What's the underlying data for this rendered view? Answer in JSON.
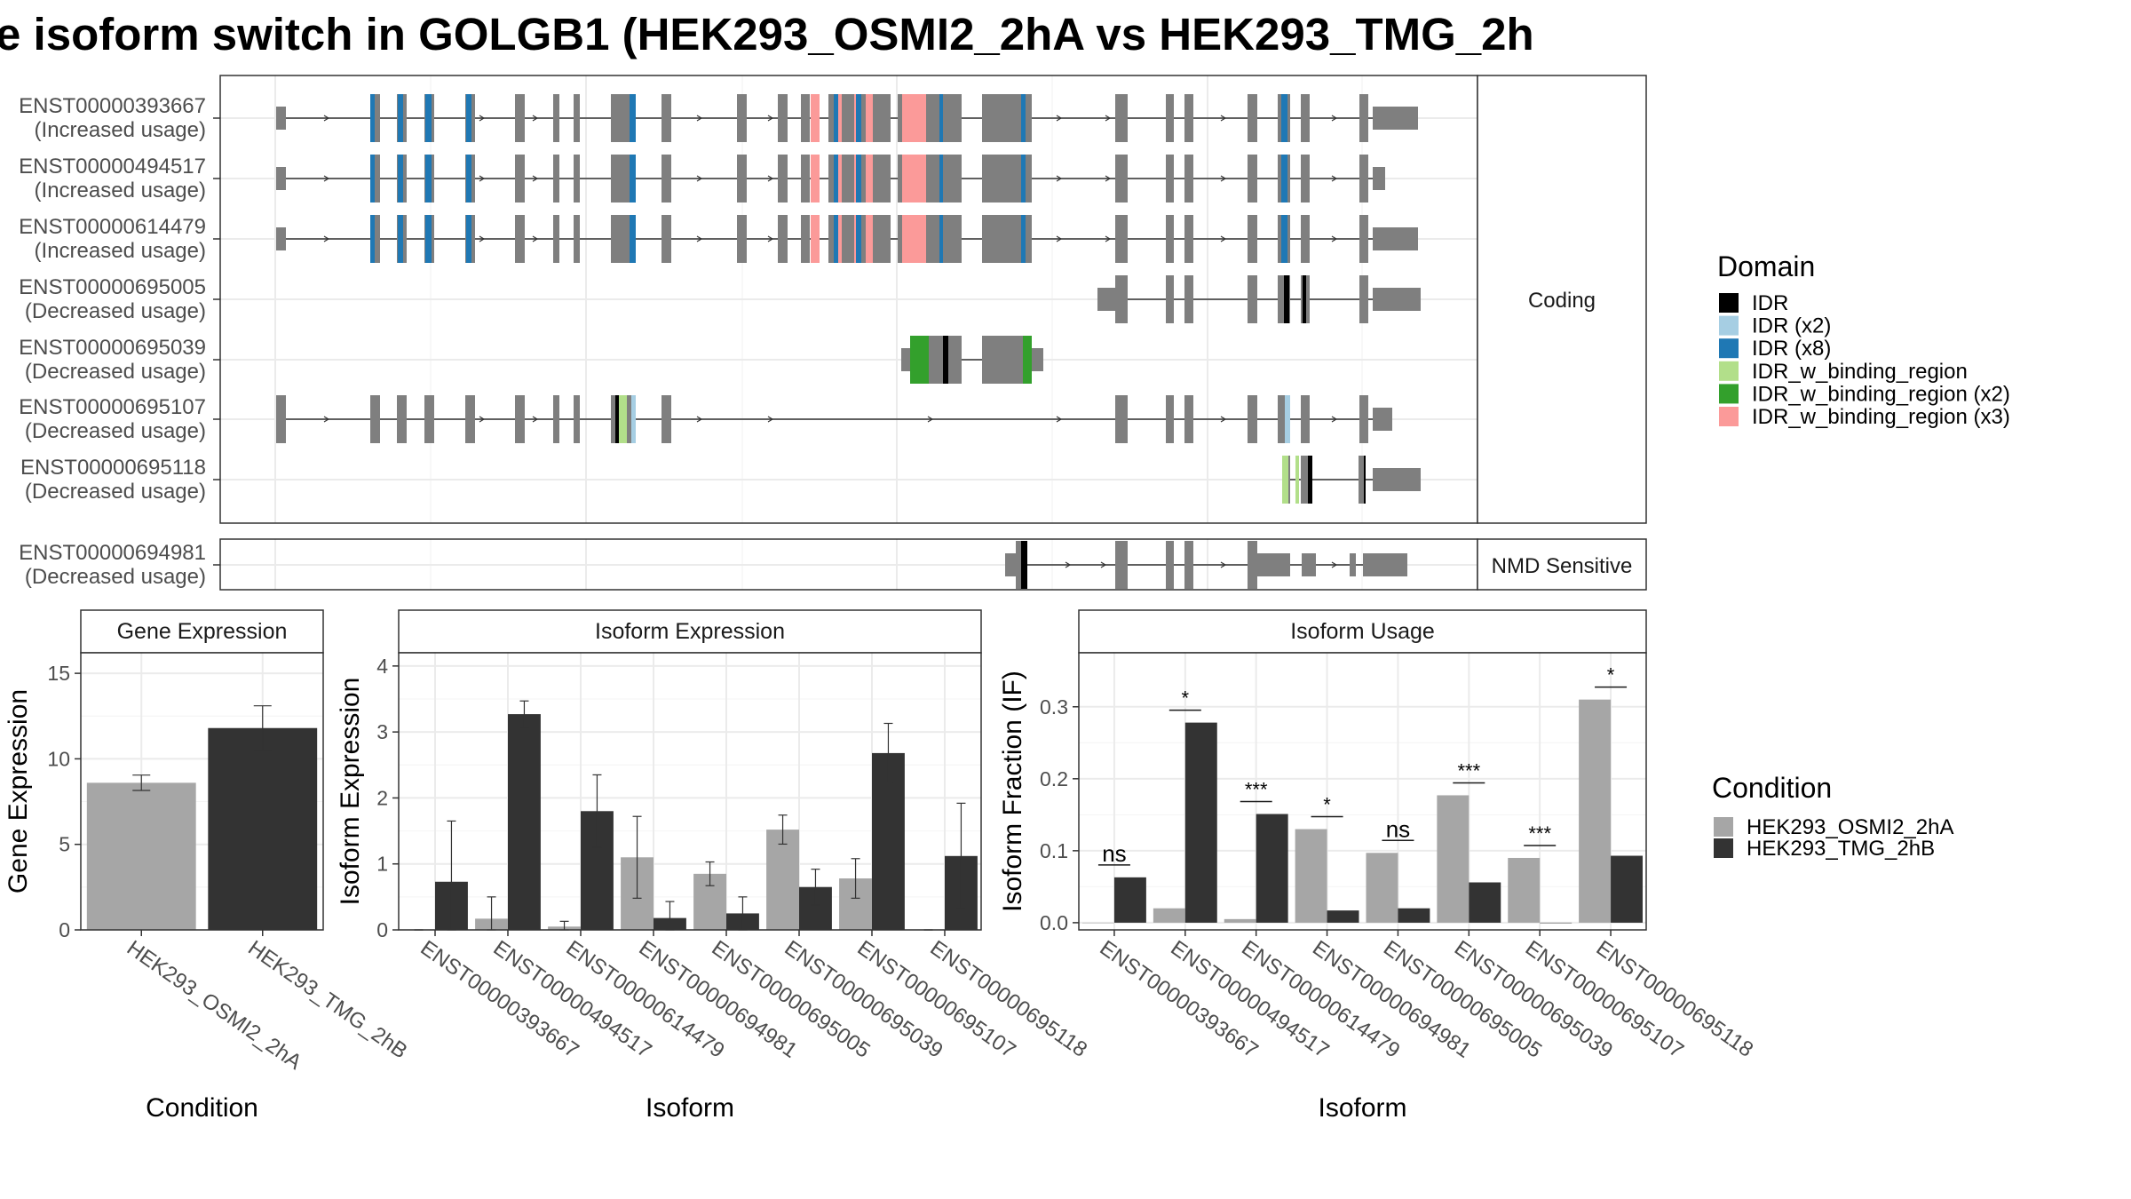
{
  "title": "e isoform switch in GOLGB1 (HEK293_OSMI2_2hA vs HEK293_TMG_2h",
  "colors": {
    "cond_a": "#a6a6a6",
    "cond_b": "#333333",
    "exon": "#7f7f7f",
    "IDR": "#000000",
    "IDR (x2)": "#a6cee3",
    "IDR (x8)": "#1f78b4",
    "IDR_w_binding_region": "#b2df8a",
    "IDR_w_binding_region (x2)": "#33a02c",
    "IDR_w_binding_region (x3)": "#fb9a99"
  },
  "structure": {
    "facets": [
      "Coding",
      "NMD Sensitive"
    ],
    "transcripts": [
      {
        "id": "ENST00000393667",
        "usage": "(Increased usage)",
        "facet": "Coding"
      },
      {
        "id": "ENST00000494517",
        "usage": "(Increased usage)",
        "facet": "Coding"
      },
      {
        "id": "ENST00000614479",
        "usage": "(Increased usage)",
        "facet": "Coding"
      },
      {
        "id": "ENST00000695005",
        "usage": "(Decreased usage)",
        "facet": "Coding"
      },
      {
        "id": "ENST00000695039",
        "usage": "(Decreased usage)",
        "facet": "Coding"
      },
      {
        "id": "ENST00000695107",
        "usage": "(Decreased usage)",
        "facet": "Coding"
      },
      {
        "id": "ENST00000695118",
        "usage": "(Decreased usage)",
        "facet": "Coding"
      },
      {
        "id": "ENST00000694981",
        "usage": "(Decreased usage)",
        "facet": "NMD Sensitive"
      }
    ]
  },
  "domain_legend": {
    "title": "Domain",
    "items": [
      "IDR",
      "IDR (x2)",
      "IDR (x8)",
      "IDR_w_binding_region",
      "IDR_w_binding_region (x2)",
      "IDR_w_binding_region (x3)"
    ]
  },
  "condition_legend": {
    "title": "Condition",
    "items": [
      "HEK293_OSMI2_2hA",
      "HEK293_TMG_2hB"
    ]
  },
  "chart_data": [
    {
      "type": "bar",
      "title": "Gene Expression",
      "xlabel": "Condition",
      "ylabel": "Gene Expression",
      "categories": [
        "HEK293_OSMI2_2hA",
        "HEK293_TMG_2hB"
      ],
      "values": [
        8.6,
        11.8
      ],
      "errors": [
        0.45,
        1.3
      ],
      "ylim": [
        0,
        16.2
      ],
      "yticks": [
        0,
        5,
        10,
        15
      ]
    },
    {
      "type": "bar",
      "title": "Isoform Expression",
      "xlabel": "Isoform",
      "ylabel": "Isoform Expression",
      "categories": [
        "ENST00000393667",
        "ENST00000494517",
        "ENST00000614479",
        "ENST00000694981",
        "ENST00000695005",
        "ENST00000695039",
        "ENST00000695107",
        "ENST00000695118"
      ],
      "series": [
        {
          "name": "HEK293_OSMI2_2hA",
          "values": [
            0.0,
            0.17,
            0.05,
            1.1,
            0.85,
            1.52,
            0.78,
            0.0
          ],
          "errors": [
            0.0,
            0.33,
            0.08,
            0.62,
            0.18,
            0.22,
            0.3,
            0.0
          ]
        },
        {
          "name": "HEK293_TMG_2hB",
          "values": [
            0.73,
            3.27,
            1.8,
            0.18,
            0.25,
            0.65,
            2.68,
            1.12
          ],
          "errors": [
            0.92,
            0.2,
            0.55,
            0.25,
            0.25,
            0.27,
            0.45,
            0.8
          ]
        }
      ],
      "ylim": [
        0,
        4.2
      ],
      "yticks": [
        0,
        1,
        2,
        3,
        4
      ]
    },
    {
      "type": "bar",
      "title": "Isoform Usage",
      "xlabel": "Isoform",
      "ylabel": "Isoform Fraction (IF)",
      "categories": [
        "ENST00000393667",
        "ENST00000494517",
        "ENST00000614479",
        "ENST00000694981",
        "ENST00000695005",
        "ENST00000695039",
        "ENST00000695107",
        "ENST00000695118"
      ],
      "series": [
        {
          "name": "HEK293_OSMI2_2hA",
          "values": [
            0.0,
            0.02,
            0.005,
            0.13,
            0.097,
            0.177,
            0.09,
            0.31
          ]
        },
        {
          "name": "HEK293_TMG_2hB",
          "values": [
            0.063,
            0.278,
            0.151,
            0.017,
            0.02,
            0.056,
            0.0,
            0.093
          ]
        }
      ],
      "significance": [
        "ns",
        "*",
        "***",
        "*",
        "ns",
        "***",
        "***",
        "*"
      ],
      "ylim": [
        -0.01,
        0.375
      ],
      "yticks": [
        0.0,
        0.1,
        0.2,
        0.3
      ],
      "ytick_labels": [
        "0.0",
        "0.1",
        "0.2",
        "0.3"
      ]
    }
  ]
}
